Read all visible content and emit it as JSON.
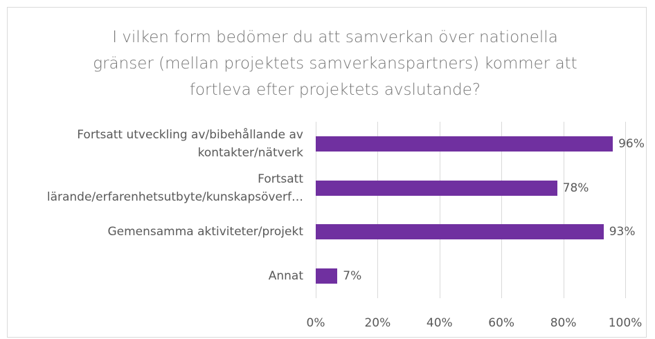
{
  "chart_data": {
    "type": "bar",
    "orientation": "horizontal",
    "title": "I vilken form bedömer du att samverkan över nationella gränser (mellan projektets samverkanspartners) kommer att fortleva efter projektets avslutande?",
    "categories": [
      "Fortsatt utveckling av/bibehållande av kontakter/nätverk",
      "Fortsatt lärande/erfarenhetsutbyte/kunskapsöverf…",
      "Gemensamma aktiviteter/projekt",
      "Annat"
    ],
    "values": [
      96,
      78,
      93,
      7
    ],
    "value_labels": [
      "96%",
      "78%",
      "93%",
      "7%"
    ],
    "color": "#7030a0",
    "xlim": [
      0,
      100
    ],
    "xticks": [
      {
        "value": 0,
        "label": "0%"
      },
      {
        "value": 20,
        "label": "20%"
      },
      {
        "value": 40,
        "label": "40%"
      },
      {
        "value": 60,
        "label": "60%"
      },
      {
        "value": 80,
        "label": "80%"
      },
      {
        "value": 100,
        "label": "100%"
      }
    ],
    "grid": true
  }
}
